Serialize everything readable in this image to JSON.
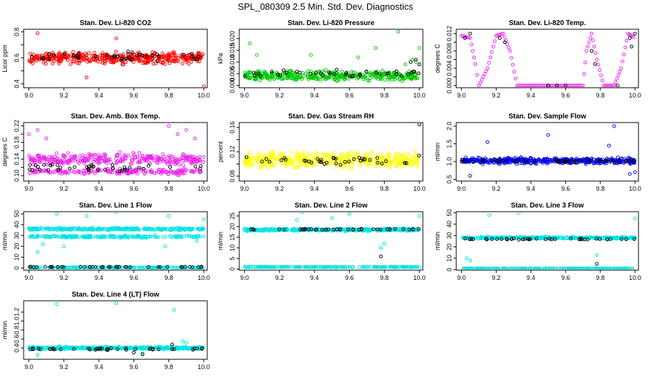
{
  "page": {
    "title": "SPL_080309  2.5 Min. Std. Dev. Diagnostics"
  },
  "chart_data": [
    {
      "type": "scatter",
      "title": "Stan. Dev. Li-820 CO2",
      "xlabel": "",
      "ylabel": "Licor ppm",
      "xlim": [
        8.97,
        10.02
      ],
      "ylim": [
        0.37,
        0.82
      ],
      "xticks": [
        9.0,
        9.2,
        9.4,
        9.6,
        9.8,
        10.0
      ],
      "xtick_labels": [
        "9.0",
        "9.2",
        "9.4",
        "9.6",
        "9.8",
        "10.0"
      ],
      "yticks": [
        0.4,
        0.5,
        0.6,
        0.7,
        0.8
      ],
      "ytick_labels": [
        "0.4",
        "",
        "0.6",
        "",
        "0.8"
      ],
      "series": [
        {
          "name": "colored",
          "color": "#ff0000",
          "bands": [
            {
              "center": 0.6,
              "spread": 0.06,
              "count": 420
            }
          ],
          "points": [
            [
              9.05,
              0.79
            ],
            [
              9.33,
              0.45
            ],
            [
              10.0,
              0.38
            ],
            [
              9.5,
              0.75
            ]
          ]
        },
        {
          "name": "black",
          "color": "#000000",
          "bands": [
            {
              "center": 0.61,
              "spread": 0.05,
              "count": 40
            }
          ],
          "points": []
        }
      ]
    },
    {
      "type": "scatter",
      "title": "Stan. Dev. Li-820 Pressure",
      "xlabel": "",
      "ylabel": "kPa",
      "xlim": [
        8.97,
        10.02
      ],
      "ylim": [
        -0.001,
        0.024
      ],
      "xticks": [
        9.0,
        9.2,
        9.4,
        9.6,
        9.8,
        10.0
      ],
      "xtick_labels": [
        "9.0",
        "9.2",
        "9.4",
        "9.6",
        "9.8",
        "10.0"
      ],
      "yticks": [
        0.0,
        0.005,
        0.01,
        0.015,
        0.02
      ],
      "ytick_labels": [
        "0.000",
        "0.005",
        "0.010",
        "0.015",
        "0.020"
      ],
      "series": [
        {
          "name": "colored",
          "color": "#00cc00",
          "bands": [
            {
              "center": 0.004,
              "spread": 0.003,
              "count": 380
            }
          ],
          "points": [
            [
              9.03,
              0.018
            ],
            [
              9.07,
              0.013
            ],
            [
              9.38,
              0.013
            ],
            [
              9.75,
              0.016
            ],
            [
              9.88,
              0.023
            ],
            [
              10.0,
              0.016
            ],
            [
              9.65,
              0.012
            ],
            [
              9.92,
              0.009
            ],
            [
              9.96,
              0.011
            ],
            [
              9.98,
              0.01
            ]
          ]
        },
        {
          "name": "black",
          "color": "#000000",
          "bands": [
            {
              "center": 0.005,
              "spread": 0.002,
              "count": 40
            }
          ],
          "points": [
            [
              9.95,
              0.01
            ],
            [
              9.98,
              0.011
            ],
            [
              10.0,
              0.009
            ]
          ]
        }
      ]
    },
    {
      "type": "scatter",
      "title": "Stan. Dev. Li-820 Temp.",
      "xlabel": "",
      "ylabel": "degrees C",
      "xlim": [
        8.97,
        10.02
      ],
      "ylim": [
        -0.0005,
        0.013
      ],
      "xticks": [
        9.0,
        9.2,
        9.4,
        9.6,
        9.8,
        10.0
      ],
      "xtick_labels": [
        "9.0",
        "9.2",
        "9.4",
        "9.6",
        "9.8",
        "10.0"
      ],
      "yticks": [
        0.0,
        0.002,
        0.004,
        0.006,
        0.008,
        0.01,
        0.012
      ],
      "ytick_labels": [
        "0.000",
        "",
        "0.004",
        "",
        "0.008",
        "",
        "0.012"
      ],
      "series": [
        {
          "name": "colored",
          "color": "#ee22ee",
          "bands": [],
          "curve": [
            [
              9.0,
              0.0115
            ],
            [
              9.05,
              0.011
            ],
            [
              9.08,
              0.005
            ],
            [
              9.1,
              0.0
            ],
            [
              9.15,
              0.004
            ],
            [
              9.2,
              0.0115
            ],
            [
              9.24,
              0.012
            ],
            [
              9.28,
              0.008
            ],
            [
              9.32,
              0.0
            ],
            [
              9.37,
              0.0
            ],
            [
              9.6,
              0.0
            ],
            [
              9.7,
              0.0
            ],
            [
              9.72,
              0.008
            ],
            [
              9.75,
              0.012
            ],
            [
              9.78,
              0.006
            ],
            [
              9.82,
              0.0
            ],
            [
              9.88,
              0.0
            ],
            [
              9.92,
              0.004
            ],
            [
              9.96,
              0.012
            ],
            [
              10.0,
              0.011
            ]
          ]
        },
        {
          "name": "black",
          "color": "#000000",
          "bands": [],
          "points": [
            [
              9.02,
              0.011
            ],
            [
              9.05,
              0.012
            ],
            [
              9.22,
              0.011
            ],
            [
              9.25,
              0.01
            ],
            [
              9.5,
              0.0
            ],
            [
              9.55,
              0.0
            ],
            [
              9.6,
              0.0
            ],
            [
              9.75,
              0.008
            ],
            [
              9.77,
              0.005
            ],
            [
              9.9,
              0.0
            ],
            [
              9.97,
              0.011
            ],
            [
              9.98,
              0.009
            ],
            [
              10.0,
              0.012
            ]
          ]
        }
      ]
    },
    {
      "type": "scatter",
      "title": "Stan. Dev. Amb. Box Temp.",
      "xlabel": "",
      "ylabel": "degrees C",
      "xlim": [
        8.97,
        10.02
      ],
      "ylim": [
        0.087,
        0.228
      ],
      "xticks": [
        9.0,
        9.2,
        9.4,
        9.6,
        9.8,
        10.0
      ],
      "xtick_labels": [
        "9.0",
        "9.2",
        "9.4",
        "9.6",
        "9.8",
        "10.0"
      ],
      "yticks": [
        0.1,
        0.12,
        0.14,
        0.16,
        0.18,
        0.2,
        0.22
      ],
      "ytick_labels": [
        "0.10",
        "",
        "0.14",
        "",
        "0.18",
        "",
        "0.22"
      ],
      "series": [
        {
          "name": "colored",
          "color": "#ee22ee",
          "bands": [
            {
              "center": 0.14,
              "spread": 0.02,
              "count": 300
            },
            {
              "center": 0.11,
              "spread": 0.01,
              "count": 180
            }
          ],
          "points": [
            [
              9.0,
              0.2
            ],
            [
              9.05,
              0.21
            ],
            [
              9.1,
              0.19
            ],
            [
              9.85,
              0.2
            ],
            [
              9.9,
              0.21
            ],
            [
              9.95,
              0.19
            ],
            [
              9.8,
              0.22
            ]
          ]
        },
        {
          "name": "black",
          "color": "#000000",
          "bands": [
            {
              "center": 0.12,
              "spread": 0.015,
              "count": 40
            }
          ],
          "points": []
        }
      ]
    },
    {
      "type": "scatter",
      "title": "Stan. Dev. Gas Stream RH",
      "xlabel": "",
      "ylabel": "percent",
      "xlim": [
        8.97,
        10.02
      ],
      "ylim": [
        0.072,
        0.168
      ],
      "xticks": [
        9.0,
        9.2,
        9.4,
        9.6,
        9.8,
        10.0
      ],
      "xtick_labels": [
        "9.0",
        "9.2",
        "9.4",
        "9.6",
        "9.8",
        "10.0"
      ],
      "yticks": [
        0.08,
        0.1,
        0.12,
        0.14,
        0.16
      ],
      "ytick_labels": [
        "0.08",
        "",
        "0.12",
        "",
        "0.16"
      ],
      "series": [
        {
          "name": "colored",
          "color": "#ffff00",
          "bands": [
            {
              "center": 0.107,
              "spread": 0.018,
              "count": 420
            }
          ],
          "points": []
        },
        {
          "name": "black",
          "color": "#000000",
          "bands": [
            {
              "center": 0.105,
              "spread": 0.014,
              "count": 40
            }
          ],
          "points": [
            [
              10.0,
              0.165
            ]
          ]
        }
      ]
    },
    {
      "type": "scatter",
      "title": "Stan. Dev. Sample Flow",
      "xlabel": "",
      "ylabel": "ml/min",
      "xlim": [
        8.97,
        10.02
      ],
      "ylim": [
        0.45,
        2.1
      ],
      "xticks": [
        9.0,
        9.2,
        9.4,
        9.6,
        9.8,
        10.0
      ],
      "xtick_labels": [
        "9.0",
        "9.2",
        "9.4",
        "9.6",
        "9.8",
        "10.0"
      ],
      "yticks": [
        0.5,
        1.0,
        1.5,
        2.0
      ],
      "ytick_labels": [
        "0.5",
        "1.0",
        "1.5",
        "2.0"
      ],
      "series": [
        {
          "name": "colored",
          "color": "#0000ee",
          "bands": [
            {
              "center": 1.02,
              "spread": 0.12,
              "count": 420
            }
          ],
          "points": [
            [
              9.05,
              0.6
            ],
            [
              9.15,
              1.55
            ],
            [
              9.5,
              1.75
            ],
            [
              9.88,
              2.0
            ],
            [
              9.85,
              1.45
            ],
            [
              9.97,
              0.65
            ],
            [
              10.0,
              0.7
            ]
          ]
        },
        {
          "name": "black",
          "color": "#000000",
          "bands": [
            {
              "center": 1.02,
              "spread": 0.06,
              "count": 40
            }
          ],
          "points": []
        }
      ]
    },
    {
      "type": "scatter",
      "title": "Stan. Dev. Line 1 Flow",
      "xlabel": "",
      "ylabel": "ml/min",
      "xlim": [
        8.97,
        10.02
      ],
      "ylim": [
        -2,
        52
      ],
      "xticks": [
        9.0,
        9.2,
        9.4,
        9.6,
        9.8,
        10.0
      ],
      "xtick_labels": [
        "9.0",
        "9.2",
        "9.4",
        "9.6",
        "9.8",
        "10.0"
      ],
      "yticks": [
        0,
        10,
        20,
        30,
        40,
        50
      ],
      "ytick_labels": [
        "0",
        "10",
        "20",
        "30",
        "40",
        "50"
      ],
      "series": [
        {
          "name": "colored",
          "color": "#00e5e5",
          "bands": [
            {
              "center": 36,
              "spread": 1.5,
              "count": 300
            },
            {
              "center": 29,
              "spread": 1.5,
              "count": 200
            },
            {
              "center": 0.5,
              "spread": 0.3,
              "count": 200
            }
          ],
          "points": [
            [
              9.05,
              15
            ],
            [
              9.08,
              22
            ],
            [
              9.16,
              50
            ],
            [
              9.2,
              20
            ],
            [
              9.33,
              48
            ],
            [
              9.5,
              52
            ],
            [
              9.78,
              20
            ],
            [
              9.8,
              48
            ],
            [
              9.96,
              25
            ],
            [
              10.0,
              45
            ]
          ]
        },
        {
          "name": "black",
          "color": "#000000",
          "bands": [
            {
              "center": 1,
              "spread": 0.3,
              "count": 40
            }
          ],
          "points": []
        }
      ]
    },
    {
      "type": "scatter",
      "title": "Stan. Dev. Line 2 Flow",
      "xlabel": "",
      "ylabel": "ml/min",
      "xlim": [
        8.97,
        10.02
      ],
      "ylim": [
        -0.5,
        27
      ],
      "xticks": [
        9.0,
        9.2,
        9.4,
        9.6,
        9.8,
        10.0
      ],
      "xtick_labels": [
        "9.0",
        "9.2",
        "9.4",
        "9.6",
        "9.8",
        "10.0"
      ],
      "yticks": [
        0,
        5,
        10,
        15,
        20,
        25
      ],
      "ytick_labels": [
        "0",
        "5",
        "10",
        "15",
        "20",
        "25"
      ],
      "series": [
        {
          "name": "colored",
          "color": "#00e5e5",
          "bands": [
            {
              "center": 18.5,
              "spread": 0.8,
              "count": 380
            },
            {
              "center": 1,
              "spread": 0.2,
              "count": 220
            }
          ],
          "points": [
            [
              9.3,
              23
            ],
            [
              9.33,
              27
            ],
            [
              9.5,
              24
            ],
            [
              9.78,
              10
            ],
            [
              9.8,
              12
            ],
            [
              10.0,
              25
            ],
            [
              9.6,
              26
            ]
          ]
        },
        {
          "name": "black",
          "color": "#000000",
          "bands": [
            {
              "center": 18.7,
              "spread": 0.4,
              "count": 40
            }
          ],
          "points": [
            [
              9.78,
              6
            ]
          ]
        }
      ]
    },
    {
      "type": "scatter",
      "title": "Stan. Dev. Line 3 Flow",
      "xlabel": "",
      "ylabel": "ml/min",
      "xlim": [
        8.97,
        10.02
      ],
      "ylim": [
        -0.5,
        51
      ],
      "xticks": [
        9.0,
        9.2,
        9.4,
        9.6,
        9.8,
        10.0
      ],
      "xtick_labels": [
        "9.0",
        "9.2",
        "9.4",
        "9.6",
        "9.8",
        "10.0"
      ],
      "yticks": [
        0,
        10,
        20,
        30,
        40,
        50
      ],
      "ytick_labels": [
        "0",
        "10",
        "20",
        "30",
        "40",
        "50"
      ],
      "series": [
        {
          "name": "colored",
          "color": "#00e5e5",
          "bands": [
            {
              "center": 28,
              "spread": 1.2,
              "count": 380
            },
            {
              "center": 1,
              "spread": 0.2,
              "count": 220
            }
          ],
          "points": [
            [
              9.03,
              10
            ],
            [
              9.05,
              8
            ],
            [
              9.16,
              48
            ],
            [
              9.33,
              50
            ],
            [
              9.78,
              13
            ],
            [
              10.0,
              45
            ]
          ]
        },
        {
          "name": "black",
          "color": "#000000",
          "bands": [
            {
              "center": 27,
              "spread": 0.8,
              "count": 40
            }
          ],
          "points": [
            [
              9.78,
              5
            ]
          ]
        }
      ]
    },
    {
      "type": "scatter",
      "title": "Stan. Dev. Line 4 (LT) Flow",
      "xlabel": "",
      "ylabel": "ml/min",
      "xlim": [
        8.97,
        10.02
      ],
      "ylim": [
        0.15,
        1.45
      ],
      "xticks": [
        9.0,
        9.2,
        9.4,
        9.6,
        9.8,
        10.0
      ],
      "xtick_labels": [
        "9.0",
        "9.2",
        "9.4",
        "9.6",
        "9.8",
        "10.0"
      ],
      "yticks": [
        0.4,
        0.6,
        0.8,
        1.0,
        1.2
      ],
      "ytick_labels": [
        "0.4",
        "0.6",
        "0.8",
        "1.0",
        "1.2"
      ],
      "series": [
        {
          "name": "colored",
          "color": "#00e5e5",
          "bands": [
            {
              "center": 0.4,
              "spread": 0.04,
              "count": 400
            }
          ],
          "points": [
            [
              9.16,
              1.38
            ],
            [
              9.5,
              1.4
            ],
            [
              9.83,
              1.25
            ],
            [
              9.05,
              0.25
            ],
            [
              9.65,
              0.28
            ],
            [
              9.88,
              0.55
            ],
            [
              9.9,
              0.52
            ]
          ]
        },
        {
          "name": "black",
          "color": "#000000",
          "bands": [
            {
              "center": 0.38,
              "spread": 0.03,
              "count": 40
            }
          ],
          "points": [
            [
              9.82,
              0.48
            ],
            [
              9.65,
              0.26
            ],
            [
              9.6,
              0.3
            ]
          ]
        }
      ]
    }
  ]
}
